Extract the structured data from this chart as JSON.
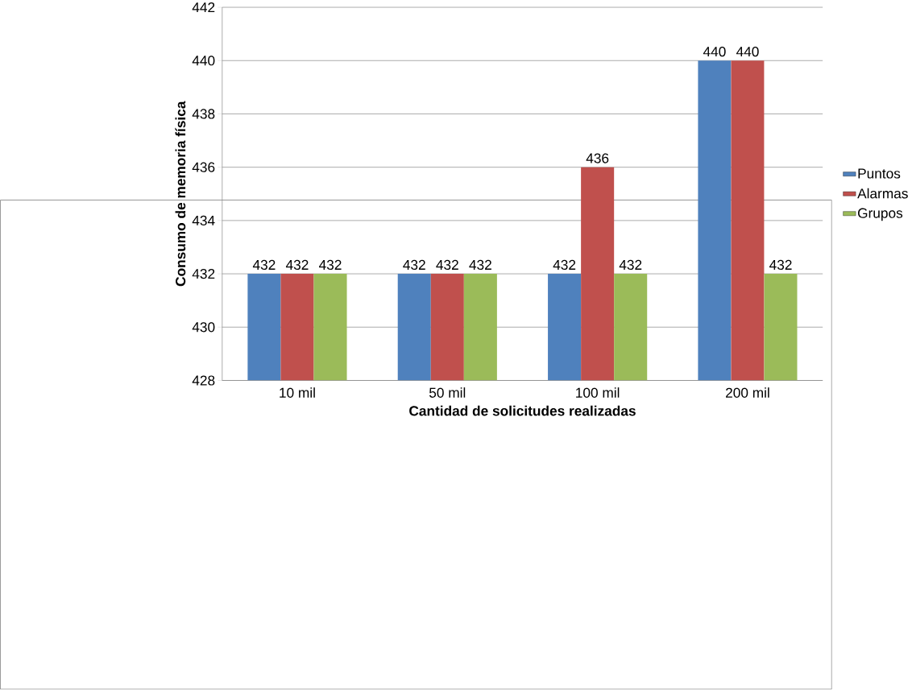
{
  "chart_data": {
    "type": "bar",
    "xlabel": "Cantidad de solicitudes realizadas",
    "ylabel": "Consumo de memoria física",
    "categories": [
      "10 mil",
      "50 mil",
      "100 mil",
      "200 mil"
    ],
    "series": [
      {
        "name": "Puntos",
        "color": "#4f81bd",
        "values": [
          432,
          432,
          432,
          440
        ]
      },
      {
        "name": "Alarmas",
        "color": "#c0504d",
        "values": [
          432,
          432,
          436,
          440
        ]
      },
      {
        "name": "Grupos",
        "color": "#9bbb59",
        "values": [
          432,
          432,
          432,
          432
        ]
      }
    ],
    "ylim": [
      428,
      442
    ],
    "yticks": [
      428,
      430,
      432,
      434,
      436,
      438,
      440,
      442
    ],
    "grid": "y",
    "legend": "right",
    "data_labels": true
  }
}
